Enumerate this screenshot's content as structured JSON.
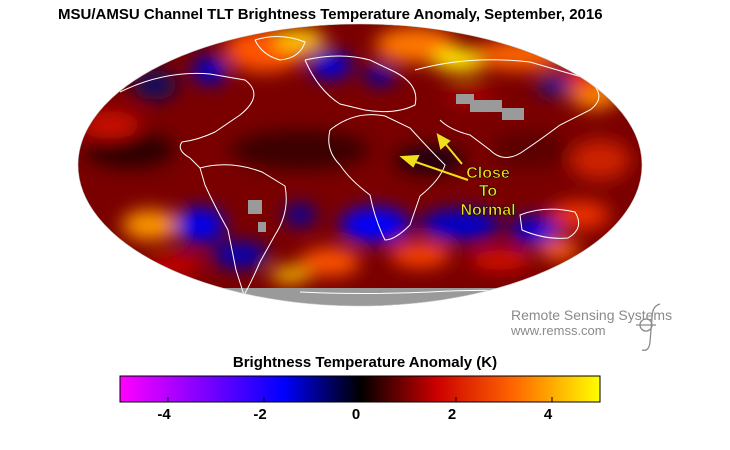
{
  "title": "MSU/AMSU Channel TLT Brightness Temperature Anomaly, September, 2016",
  "annotation": {
    "lines": [
      "Close",
      "To",
      "Normal"
    ],
    "color": "#f0e01a"
  },
  "branding": {
    "line1": "Remote Sensing Systems",
    "line2": "www.remss.com",
    "logo": "remss-logo"
  },
  "colorbar": {
    "title": "Brightness Temperature Anomaly (K)",
    "min": -5,
    "max": 5,
    "ticks": [
      -4,
      -2,
      0,
      2,
      4
    ],
    "tick_labels": [
      "-4",
      "-2",
      "0",
      "2",
      "4"
    ],
    "colors": [
      "#ff00ff",
      "#7a00ff",
      "#0000ff",
      "#000000",
      "#cc0000",
      "#ff6600",
      "#ffff00"
    ]
  },
  "map": {
    "projection": "Mollweide",
    "no_data_color": "#9a9a9a",
    "coastline_color": "#ffffff"
  }
}
